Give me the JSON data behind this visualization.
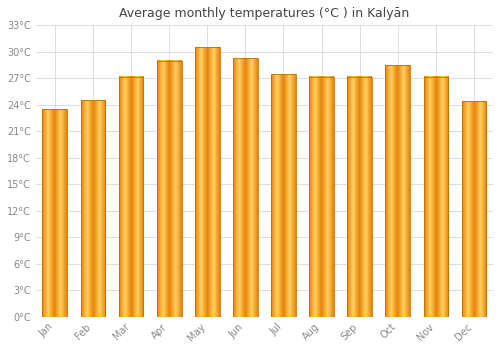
{
  "title": "Average monthly temperatures (°C ) in Kalyān",
  "months": [
    "Jan",
    "Feb",
    "Mar",
    "Apr",
    "May",
    "Jun",
    "Jul",
    "Aug",
    "Sep",
    "Oct",
    "Nov",
    "Dec"
  ],
  "values": [
    23.5,
    24.5,
    27.2,
    29.0,
    30.5,
    29.3,
    27.5,
    27.2,
    27.2,
    28.5,
    27.2,
    24.4
  ],
  "bar_color_main": "#FFA500",
  "bar_color_light": "#FFD060",
  "bar_color_dark": "#E8820A",
  "bar_edge_color": "#C07000",
  "background_color": "#ffffff",
  "grid_color": "#d8d8d8",
  "tick_label_color": "#888888",
  "title_color": "#444444",
  "ylim": [
    0,
    33
  ],
  "yticks": [
    0,
    3,
    6,
    9,
    12,
    15,
    18,
    21,
    24,
    27,
    30,
    33
  ],
  "ytick_labels": [
    "0°C",
    "3°C",
    "6°C",
    "9°C",
    "12°C",
    "15°C",
    "18°C",
    "21°C",
    "24°C",
    "27°C",
    "30°C",
    "33°C"
  ],
  "bar_width": 0.65,
  "title_fontsize": 9,
  "tick_fontsize": 7
}
